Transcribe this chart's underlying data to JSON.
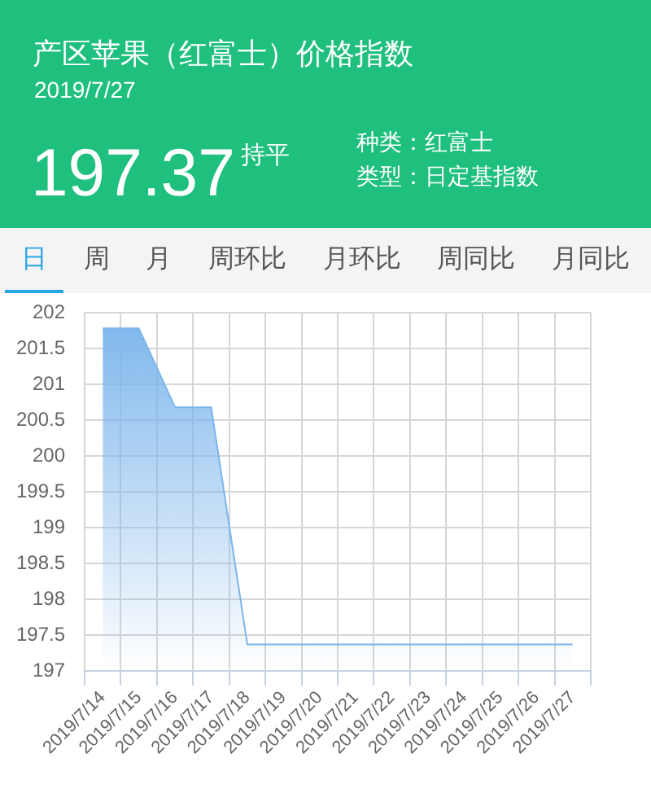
{
  "chart_data": {
    "type": "area",
    "title": "产区苹果（红富士）价格指数",
    "subtitle": "2019/7/27",
    "annotations": [
      "197.37",
      "持平",
      "种类：红富士",
      "类型：日定基指数",
      "日",
      "周",
      "月",
      "周环比",
      "月环比",
      "周同比",
      "月同比"
    ],
    "categories": [
      "2019/7/14",
      "2019/7/15",
      "2019/7/16",
      "2019/7/17",
      "2019/7/18",
      "2019/7/19",
      "2019/7/20",
      "2019/7/21",
      "2019/7/22",
      "2019/7/23",
      "2019/7/24",
      "2019/7/25",
      "2019/7/26",
      "2019/7/27"
    ],
    "series": [
      {
        "color": "#7cb5ec",
        "values": [
          201.78,
          201.78,
          200.68,
          200.68,
          197.37,
          197.37,
          197.37,
          197.37,
          197.37,
          197.37,
          197.37,
          197.37,
          197.37,
          197.37
        ]
      }
    ],
    "ylim": [
      197,
      202
    ],
    "yticks": [
      197,
      197.5,
      198,
      198.5,
      199,
      199.5,
      200,
      200.5,
      201,
      201.5,
      202
    ],
    "grid": true
  }
}
